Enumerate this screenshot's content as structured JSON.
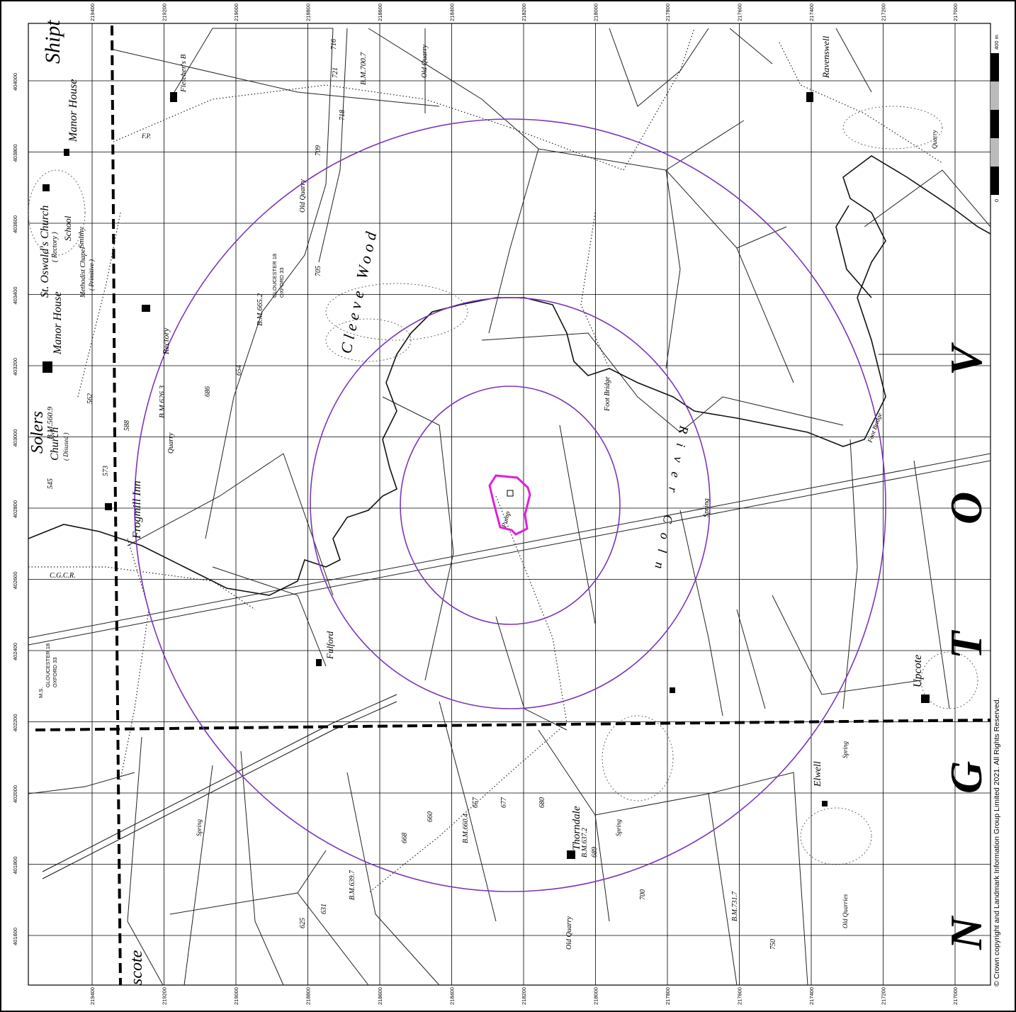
{
  "map": {
    "x_ticks": [
      "219400",
      "219200",
      "219000",
      "218800",
      "218600",
      "218400",
      "218200",
      "218000",
      "217800",
      "217600",
      "217400",
      "217200",
      "217000",
      "216800",
      "216600",
      "216400",
      "216200",
      "216000"
    ],
    "y_ticks": [
      "404000",
      "403800",
      "403600",
      "403400",
      "403200",
      "403000",
      "402800",
      "402600",
      "402400",
      "402200",
      "402000",
      "401800",
      "401600"
    ],
    "scale_bar": {
      "start": "0",
      "end": "400 m"
    },
    "copyright": "© Crown copyright and Landmark Information Group Limited 2021.  All Rights Reserved.",
    "colors": {
      "buffer_rings": "#7b35b7",
      "site_outline": "#e020d8",
      "boundary": "#000000"
    },
    "labels": {
      "shipton": "Shipt",
      "manor_house_top": "Manor House",
      "st_oswalds": "St. Oswald's Church",
      "rectory_note": "( Rectory )",
      "school": "School",
      "smithy": "Smithy",
      "methodist_chapel": "Methodist Chapel",
      "primitive": "( Primitive )",
      "manor_house": "Manor House",
      "solers": "Solers",
      "church": "Church",
      "disused": "( Disused )",
      "bm_5609": "B.M.560.9",
      "frogmill_inn": "Frogmill Inn",
      "fletchers": "Fletcher's B",
      "rectory": "Rectory",
      "quarry_left": "Quarry",
      "old_quarry_top": "Old Quarry",
      "old_quarry_mid": "Old Quarry",
      "bm_7007": "B.M.700.7",
      "bm_6652": "B.M.665.2",
      "bm_6263": "B.M.626.3",
      "gloucester_ms": "GLOUCESTER 18",
      "oxford_ms": "OXFORD 33",
      "ms_label": "M.S.",
      "gloucester_ms2": "GLOUCESTER 18",
      "oxford_ms2": "OXFORD 33",
      "cleeve_wood": "Cleeve Wood",
      "pump": "Pump",
      "foot_bridge": "Foot Bridge",
      "foot_bridge2": "Foot Bridge",
      "river_coln": "River Coln",
      "spring_right": "Spring",
      "ravenswell": "Ravenswell",
      "quarry_right": "Quarry",
      "fulford": "Fulford",
      "ccr": "C.G.C.R.",
      "upcote": "Upcote",
      "elwell": "Elwell",
      "spring_elwell": "Spring",
      "thorndale": "Thorndale",
      "bm_6372": "B.M.637.2",
      "bm_6604": "B.M.660.4",
      "bm_6397": "B.M.639.7",
      "bm_7317": "B.M.731.7",
      "old_quarry_bottom": "Old Quarry",
      "old_quarries": "Old Quarries",
      "spring_bottom_left": "Spring",
      "spring_bottom_mid": "Spring",
      "fp": "F.P.",
      "compton": "scote",
      "elev_545": "545",
      "elev_573": "573",
      "elev_562": "562",
      "elev_588": "588",
      "elev_657": "657",
      "elev_677": "677",
      "elev_680": "680",
      "elev_705": "705",
      "elev_709": "709",
      "elev_700": "700",
      "elev_718": "718",
      "elev_716": "716",
      "elev_721": "721",
      "elev_654": "654",
      "elev_686": "686",
      "elev_668": "668",
      "elev_660": "660",
      "elev_631": "631",
      "elev_625": "625",
      "elev_750": "750",
      "elev_689": "689",
      "big_v_top": "V",
      "big_o": "O",
      "big_t": "T",
      "big_g": "G",
      "big_n": "N"
    }
  }
}
